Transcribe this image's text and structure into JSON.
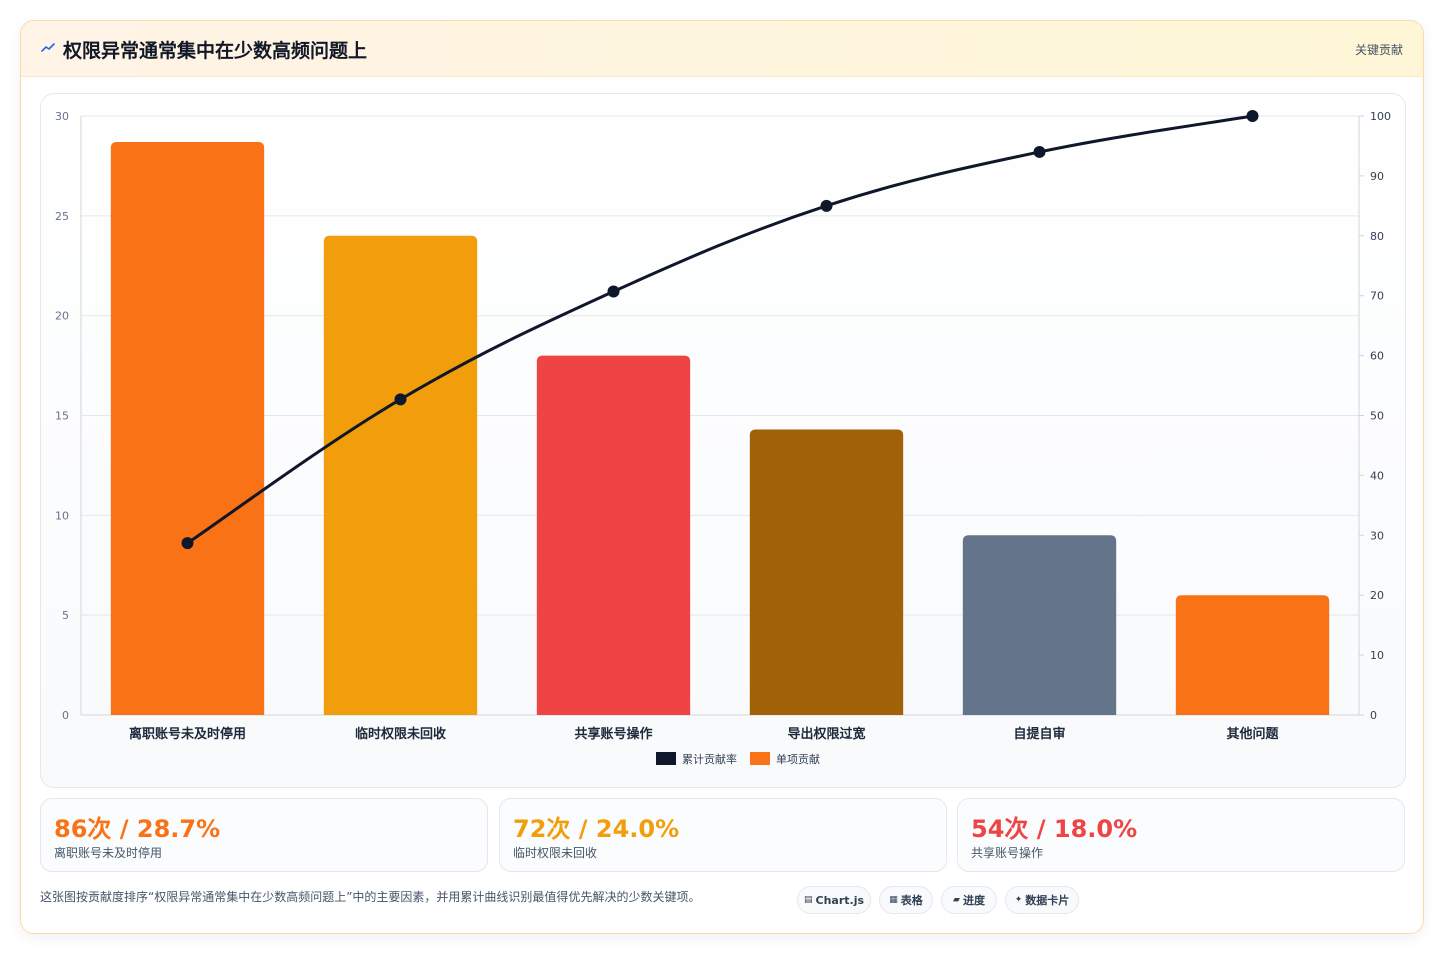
{
  "header": {
    "title": "权限异常通常集中在少数高频问题上",
    "tag": "关键贡献"
  },
  "chart_data": {
    "type": "bar",
    "categories": [
      "离职账号未及时停用",
      "临时权限未回收",
      "共享账号操作",
      "导出权限过宽",
      "自提自审",
      "其他问题"
    ],
    "series": [
      {
        "name": "单项贡献",
        "type": "bar",
        "axis": "left",
        "values": [
          28.7,
          24.0,
          18.0,
          14.3,
          9.0,
          6.0
        ],
        "colors": [
          "#f97316",
          "#f29e0c",
          "#ef4444",
          "#a16207",
          "#64748b",
          "#f97316"
        ]
      },
      {
        "name": "累计贡献率",
        "type": "line",
        "axis": "right",
        "values": [
          28.7,
          52.7,
          70.7,
          85.0,
          94.0,
          100.0
        ],
        "color": "#0f172a"
      }
    ],
    "ylim": [
      0,
      30
    ],
    "y_ticks": [
      "0",
      "5",
      "10",
      "15",
      "20",
      "25",
      "30"
    ],
    "y2lim": [
      0,
      100
    ],
    "y2_ticks": [
      "0",
      "10",
      "20",
      "30",
      "40",
      "50",
      "60",
      "70",
      "80",
      "90",
      "100"
    ],
    "legend": [
      "累计贡献率",
      "单项贡献"
    ],
    "legend_colors": [
      "#0f172a",
      "#f97316"
    ],
    "legend_position": "bottom",
    "grid": true
  },
  "stats": [
    {
      "value": "86次 / 28.7%",
      "label": "离职账号未及时停用",
      "color": "#f97316"
    },
    {
      "value": "72次 / 24.0%",
      "label": "临时权限未回收",
      "color": "#f29e0c"
    },
    {
      "value": "54次 / 18.0%",
      "label": "共享账号操作",
      "color": "#ef4444"
    }
  ],
  "footnote": "这张图按贡献度排序“权限异常通常集中在少数高频问题上”中的主要因素，并用累计曲线识别最值得优先解决的少数关键项。",
  "pills": [
    {
      "icon": "▤",
      "label": "Chart.js"
    },
    {
      "icon": "▦",
      "label": "表格"
    },
    {
      "icon": "▰",
      "label": "进度"
    },
    {
      "icon": "✦",
      "label": "数据卡片"
    }
  ]
}
